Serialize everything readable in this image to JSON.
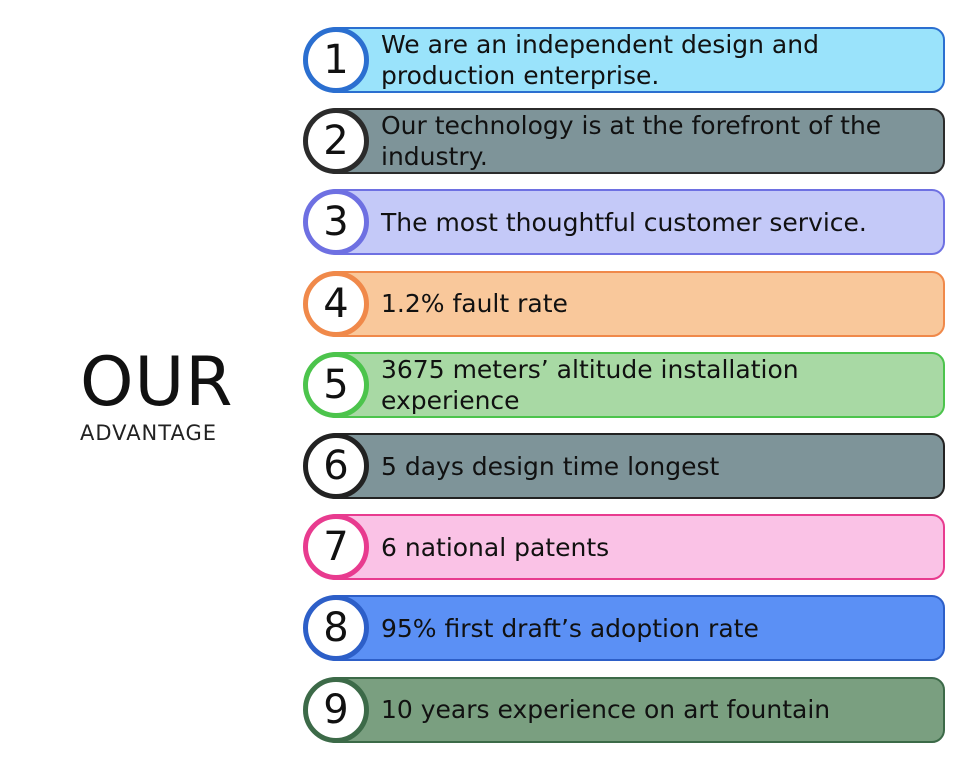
{
  "heading": {
    "title": "OUR",
    "subtitle": "ADVANTAGE"
  },
  "items": [
    {
      "number": "1",
      "text": "We are an independent design and production enterprise."
    },
    {
      "number": "2",
      "text": "Our technology is at the forefront of the industry."
    },
    {
      "number": "3",
      "text": "The most thoughtful customer service."
    },
    {
      "number": "4",
      "text": "1.2% fault rate"
    },
    {
      "number": "5",
      "text": "3675 meters’ altitude installation experience"
    },
    {
      "number": "6",
      "text": "5 days design time longest"
    },
    {
      "number": "7",
      "text": "6 national patents"
    },
    {
      "number": "8",
      "text": "95% first draft’s adoption rate"
    },
    {
      "number": "9",
      "text": "10 years experience on art fountain"
    }
  ]
}
